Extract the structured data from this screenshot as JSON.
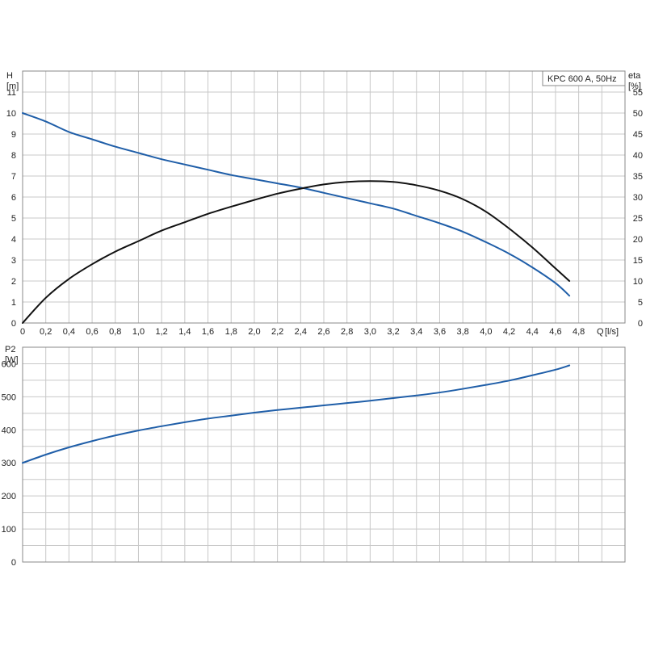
{
  "colors": {
    "head": "#1f5ea8",
    "efficiency": "#111111",
    "power": "#1f5ea8"
  },
  "chart_data": [
    {
      "type": "line",
      "legend_text": "KPC 600 A, 50Hz",
      "legend_placement": "top-right",
      "grid": true,
      "y_label": "H",
      "y_unit": "[m]",
      "y2_label": "eta",
      "y2_unit": "[%]",
      "x_label": "Q",
      "x_unit": "[l/s]",
      "xlim": [
        0,
        5.2
      ],
      "ylim": [
        0,
        12
      ],
      "y2lim": [
        0,
        60
      ],
      "x_ticks": [
        "0",
        "0,2",
        "0,4",
        "0,6",
        "0,8",
        "1,0",
        "1,2",
        "1,4",
        "1,6",
        "1,8",
        "2,0",
        "2,2",
        "2,4",
        "2,6",
        "2,8",
        "3,0",
        "3,2",
        "3,4",
        "3,6",
        "3,8",
        "4,0",
        "4,2",
        "4,4",
        "4,6",
        "4,8"
      ],
      "y_ticks": [
        "0",
        "1",
        "2",
        "3",
        "4",
        "5",
        "6",
        "7",
        "8",
        "9",
        "10",
        "11"
      ],
      "y2_ticks": [
        "0",
        "5",
        "10",
        "15",
        "20",
        "25",
        "30",
        "35",
        "40",
        "45",
        "50",
        "55"
      ],
      "series": [
        {
          "axis": "left",
          "x": [
            0,
            0.2,
            0.4,
            0.6,
            0.8,
            1.0,
            1.2,
            1.4,
            1.6,
            1.8,
            2.0,
            2.2,
            2.4,
            2.6,
            2.8,
            3.0,
            3.2,
            3.4,
            3.6,
            3.8,
            4.0,
            4.2,
            4.4,
            4.6,
            4.72
          ],
          "values": [
            10.0,
            9.6,
            9.1,
            8.75,
            8.4,
            8.1,
            7.8,
            7.55,
            7.3,
            7.05,
            6.85,
            6.65,
            6.45,
            6.2,
            5.95,
            5.7,
            5.45,
            5.1,
            4.75,
            4.35,
            3.85,
            3.3,
            2.65,
            1.9,
            1.3
          ]
        },
        {
          "axis": "right",
          "x": [
            0,
            0.2,
            0.4,
            0.6,
            0.8,
            1.0,
            1.2,
            1.4,
            1.6,
            1.8,
            2.0,
            2.2,
            2.4,
            2.6,
            2.8,
            3.0,
            3.2,
            3.4,
            3.6,
            3.8,
            4.0,
            4.2,
            4.4,
            4.6,
            4.72
          ],
          "values": [
            0,
            6,
            10.5,
            14,
            17,
            19.5,
            22,
            24,
            26,
            27.7,
            29.3,
            30.8,
            32,
            33,
            33.6,
            33.8,
            33.6,
            32.8,
            31.5,
            29.5,
            26.5,
            22.5,
            18,
            13,
            10
          ]
        }
      ]
    },
    {
      "type": "line",
      "grid": true,
      "y_label": "P2",
      "y_unit": "[W]",
      "xlim": [
        0,
        5.2
      ],
      "ylim": [
        0,
        650
      ],
      "y_ticks": [
        "0",
        "100",
        "200",
        "300",
        "400",
        "500",
        "600"
      ],
      "series": [
        {
          "axis": "left",
          "x": [
            0,
            0.2,
            0.4,
            0.6,
            0.8,
            1.0,
            1.2,
            1.4,
            1.6,
            1.8,
            2.0,
            2.2,
            2.4,
            2.6,
            2.8,
            3.0,
            3.2,
            3.4,
            3.6,
            3.8,
            4.0,
            4.2,
            4.4,
            4.6,
            4.72
          ],
          "values": [
            300,
            325,
            347,
            366,
            383,
            398,
            411,
            423,
            434,
            443,
            452,
            460,
            467,
            474,
            481,
            488,
            496,
            504,
            513,
            524,
            536,
            549,
            565,
            582,
            595
          ]
        }
      ]
    }
  ]
}
